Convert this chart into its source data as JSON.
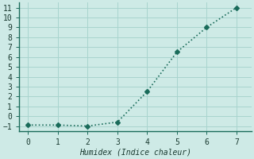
{
  "x": [
    0,
    1,
    2,
    3,
    4,
    5,
    6,
    7
  ],
  "y": [
    -0.9,
    -0.9,
    -1.0,
    -0.6,
    2.5,
    6.5,
    9.0,
    11.0
  ],
  "line_color": "#1a6b5a",
  "marker": "D",
  "marker_size": 3,
  "xlabel": "Humidex (Indice chaleur)",
  "xlabel_fontsize": 7,
  "xlim": [
    -0.3,
    7.5
  ],
  "ylim": [
    -1.5,
    11.5
  ],
  "xticks": [
    0,
    1,
    2,
    3,
    4,
    5,
    6,
    7
  ],
  "yticks": [
    -1,
    0,
    1,
    2,
    3,
    4,
    5,
    6,
    7,
    8,
    9,
    10,
    11
  ],
  "background_color": "#ceeae6",
  "grid_color": "#a8d4ce",
  "spine_color": "#1a6b5a",
  "tick_fontsize": 7,
  "font_family": "monospace"
}
